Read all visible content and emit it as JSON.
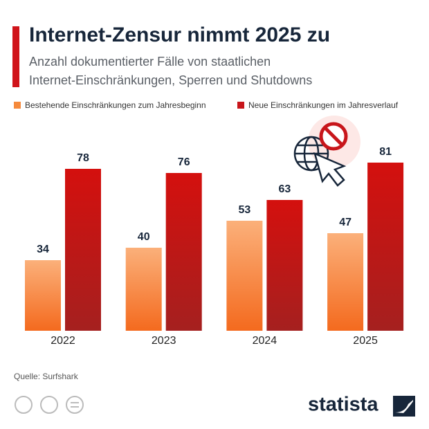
{
  "chart_data": {
    "type": "bar",
    "title": "Internet-Zensur nimmt 2025 zu",
    "subtitle": [
      "Anzahl dokumentierter Fälle von staatlichen",
      "Internet-Einschränkungen, Sperren und Shutdowns"
    ],
    "categories": [
      "2022",
      "2023",
      "2024",
      "2025"
    ],
    "series": [
      {
        "name": "Bestehende Einschränkungen zum Jahresbeginn",
        "color": "#f58a3c",
        "values": [
          34,
          40,
          53,
          47
        ]
      },
      {
        "name": "Neue Einschränkungen im Jahresverlauf",
        "color": "#c8161b",
        "values": [
          78,
          76,
          63,
          81
        ]
      }
    ],
    "source": "Quelle: Surfshark",
    "logo": "statista"
  }
}
